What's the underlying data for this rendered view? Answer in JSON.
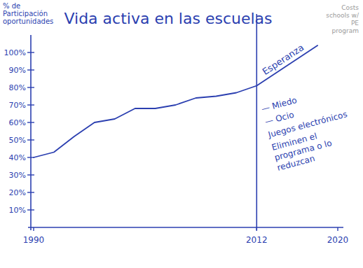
{
  "chart_data": {
    "type": "line",
    "title": "Vida activa en las escuelas",
    "y_label": "% de Participación oportunidades",
    "color": "#2b3fb0",
    "grid": false,
    "xlim": [
      1990,
      2020
    ],
    "xticks": [
      1990,
      2012,
      2020
    ],
    "ylim": [
      0,
      110
    ],
    "yticks": [
      {
        "value": 10,
        "label": "10%"
      },
      {
        "value": 20,
        "label": "20%"
      },
      {
        "value": 30,
        "label": "30%"
      },
      {
        "value": 40,
        "label": "40%"
      },
      {
        "value": 50,
        "label": "50%"
      },
      {
        "value": 60,
        "label": "60%"
      },
      {
        "value": 70,
        "label": "70%"
      },
      {
        "value": 80,
        "label": "80%"
      },
      {
        "value": 90,
        "label": "90%"
      },
      {
        "value": 100,
        "label": "100%"
      }
    ],
    "vline": 2012,
    "series": [
      {
        "x": [
          1990,
          1992,
          1994,
          1996,
          1998,
          2000,
          2002,
          2004,
          2006,
          2008,
          2010,
          2012
        ],
        "values": [
          40,
          43,
          52,
          60,
          62,
          68,
          68,
          70,
          74,
          75,
          77,
          81
        ]
      },
      {
        "name": "Esperanza",
        "x": [
          2012,
          2018
        ],
        "values": [
          81,
          104
        ]
      }
    ],
    "annotations": [
      "— Miedo",
      "— Ocio",
      "Juegos electrónicos",
      "Eliminen el programa o lo reduzcan"
    ],
    "side_note": "Costs schools w/ PE program"
  }
}
